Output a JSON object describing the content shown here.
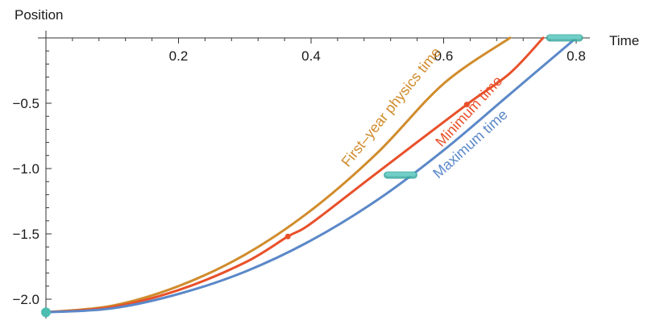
{
  "chart_data": {
    "type": "line",
    "xlabel": "Time",
    "ylabel": "Position",
    "xlim": [
      0,
      0.82
    ],
    "ylim": [
      -2.15,
      0
    ],
    "x_ticks": [
      {
        "value": 0.2,
        "label": "0.2"
      },
      {
        "value": 0.4,
        "label": "0.4"
      },
      {
        "value": 0.6,
        "label": "0.6"
      },
      {
        "value": 0.8,
        "label": "0.8"
      }
    ],
    "y_ticks": [
      {
        "value": -0.5,
        "label": "−0.5"
      },
      {
        "value": -1.0,
        "label": "−1.0"
      },
      {
        "value": -1.5,
        "label": "−1.5"
      },
      {
        "value": -2.0,
        "label": "−2.0"
      }
    ],
    "grid": false,
    "series": [
      {
        "name": "First–year physics time",
        "color": "#d08c2c",
        "x": [
          0,
          0.1,
          0.2,
          0.3,
          0.4,
          0.5,
          0.6,
          0.7
        ],
        "y": [
          -2.1,
          -2.05,
          -1.9,
          -1.66,
          -1.32,
          -0.88,
          -0.35,
          0
        ]
      },
      {
        "name": "Minimum time",
        "color": "#e8502a",
        "x": [
          0,
          0.1,
          0.2,
          0.3,
          0.365,
          0.4,
          0.5,
          0.635,
          0.7,
          0.75
        ],
        "y": [
          -2.1,
          -2.06,
          -1.93,
          -1.72,
          -1.52,
          -1.42,
          -1.03,
          -0.51,
          -0.27,
          0
        ],
        "markers": [
          {
            "x": 0.365,
            "y": -1.52
          },
          {
            "x": 0.635,
            "y": -0.51
          }
        ]
      },
      {
        "name": "Maximum time",
        "color": "#5b88c8",
        "x": [
          0,
          0.1,
          0.2,
          0.3,
          0.4,
          0.5,
          0.6,
          0.7,
          0.8
        ],
        "y": [
          -2.1,
          -2.07,
          -1.96,
          -1.79,
          -1.55,
          -1.24,
          -0.86,
          -0.43,
          0
        ]
      }
    ],
    "annotations": [
      {
        "kind": "point",
        "x": 0,
        "y": -2.1,
        "color": "#4dbdb1"
      },
      {
        "kind": "segment",
        "x1": 0.515,
        "x2": 0.555,
        "y": -1.05,
        "color": "#6fcfc6"
      },
      {
        "kind": "segment",
        "x1": 0.76,
        "x2": 0.805,
        "y": 0,
        "color": "#6fcfc6"
      }
    ]
  }
}
